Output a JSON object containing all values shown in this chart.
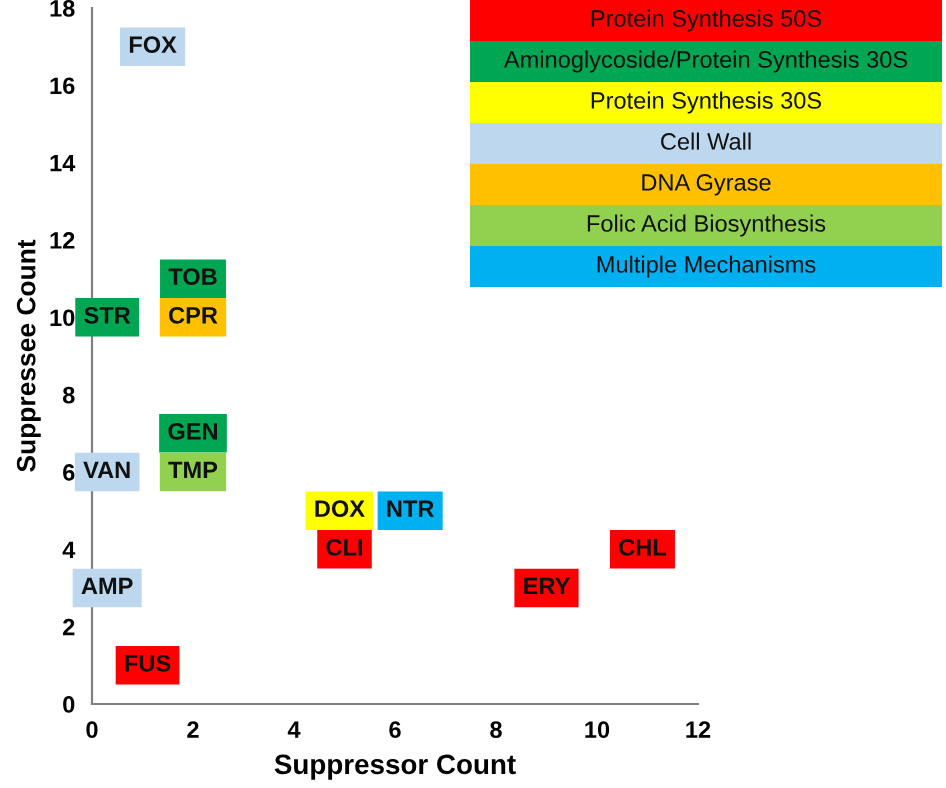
{
  "chart_data": {
    "type": "scatter",
    "xlabel": "Suppressor Count",
    "ylabel": "Suppressee Count",
    "xlim": [
      0,
      12
    ],
    "ylim": [
      0,
      18
    ],
    "xticks": [
      0,
      2,
      4,
      6,
      8,
      10,
      12
    ],
    "yticks": [
      0,
      2,
      4,
      6,
      8,
      10,
      12,
      14,
      16,
      18
    ],
    "grid": false,
    "legend": "top right",
    "marker": "square",
    "series": [
      {
        "name": "Protein Synthesis 50S",
        "color": "#ff0000",
        "x": [
          1.1,
          5,
          9,
          10.9
        ],
        "values": [
          1,
          4,
          3,
          4
        ],
        "value_labels": [
          "FUS",
          "CLI",
          "ERY",
          "CHL"
        ]
      },
      {
        "name": "Aminoglycoside/Protein Synthesis 30S",
        "color": "#00a651",
        "x": [
          0.3,
          2,
          2
        ],
        "values": [
          10,
          11,
          7
        ],
        "value_labels": [
          "STR",
          "TOB",
          "GEN"
        ]
      },
      {
        "name": "Protein Synthesis 30S",
        "color": "#ffff00",
        "x": [
          4.9
        ],
        "values": [
          5
        ],
        "value_labels": [
          "DOX"
        ]
      },
      {
        "name": "Cell Wall",
        "color": "#bdd7ee",
        "x": [
          1.2,
          0.3,
          0.3
        ],
        "values": [
          17,
          6,
          3
        ],
        "value_labels": [
          "FOX",
          "VAN",
          "AMP"
        ]
      },
      {
        "name": "DNA Gyrase",
        "color": "#ffc000",
        "x": [
          2
        ],
        "values": [
          10
        ],
        "value_labels": [
          "CPR"
        ]
      },
      {
        "name": "Folic Acid Biosynthesis",
        "color": "#92d050",
        "x": [
          2
        ],
        "values": [
          6
        ],
        "value_labels": [
          "TMP"
        ]
      },
      {
        "name": "Multiple Mechanisms",
        "color": "#00b0f0",
        "x": [
          6.3
        ],
        "values": [
          5
        ],
        "value_labels": [
          "NTR"
        ]
      }
    ]
  }
}
